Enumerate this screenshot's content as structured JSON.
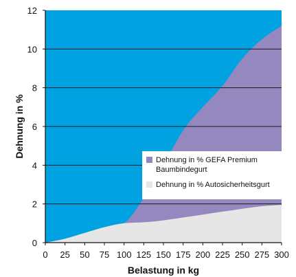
{
  "chart_data": {
    "type": "area",
    "xlabel": "Belastung in kg",
    "ylabel": "Dehnung in %",
    "xlim": [
      0,
      300
    ],
    "ylim": [
      0,
      12
    ],
    "xticks": [
      0,
      25,
      50,
      75,
      100,
      125,
      150,
      175,
      200,
      225,
      250,
      275,
      300
    ],
    "yticks": [
      0,
      2,
      4,
      6,
      8,
      10,
      12
    ],
    "grid": "horizontal",
    "legend_position": "right",
    "background_color": "#00a2e2",
    "series": [
      {
        "name": "Dehnung in % GEFA Premium Baumbindegurt",
        "legend_lines": [
          "Dehnung in % GEFA Premium",
          "Baumbindegurt"
        ],
        "color": "#9488bf",
        "x": [
          0,
          25,
          50,
          75,
          100,
          125,
          150,
          175,
          200,
          225,
          250,
          275,
          300
        ],
        "y": [
          0,
          0.2,
          0.5,
          0.8,
          1.0,
          2.3,
          4.0,
          5.8,
          7.0,
          8.1,
          9.5,
          10.5,
          11.2
        ]
      },
      {
        "name": "Dehnung in % Autosicherheitsgurt",
        "legend_lines": [
          "Dehnung in % Autosicherheitsgurt"
        ],
        "color": "#e6e6e6",
        "x": [
          0,
          25,
          50,
          75,
          100,
          125,
          150,
          175,
          200,
          225,
          250,
          275,
          300
        ],
        "y": [
          0,
          0.2,
          0.5,
          0.8,
          1.0,
          1.05,
          1.15,
          1.3,
          1.45,
          1.6,
          1.75,
          1.88,
          1.95
        ]
      }
    ]
  }
}
